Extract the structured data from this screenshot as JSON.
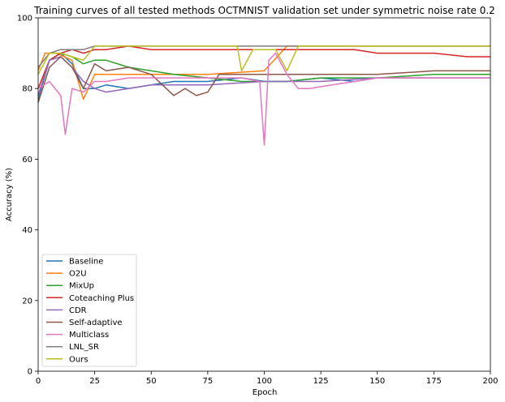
{
  "chart_data": {
    "type": "line",
    "title": "Training curves of all tested methods OCTMNIST validation set under symmetric noise rate 0.2",
    "xlabel": "Epoch",
    "ylabel": "Accuracy (%)",
    "xlim": [
      0,
      200
    ],
    "ylim": [
      0,
      100
    ],
    "xticks": [
      0,
      25,
      50,
      75,
      100,
      125,
      150,
      175,
      200
    ],
    "yticks": [
      0,
      20,
      40,
      60,
      80,
      100
    ],
    "grid": false,
    "legend_position": "lower-left",
    "series": [
      {
        "name": "Baseline",
        "color": "#1f77b4",
        "x": [
          0,
          5,
          10,
          15,
          20,
          25,
          30,
          40,
          50,
          60,
          75,
          90,
          100,
          110,
          125,
          140,
          150,
          160,
          175,
          190,
          200
        ],
        "y": [
          77,
          88,
          90,
          87,
          80,
          80,
          81,
          80,
          81,
          82,
          82,
          83,
          82,
          82,
          83,
          82,
          83,
          83,
          83,
          83,
          83
        ]
      },
      {
        "name": "O2U",
        "color": "#ff7f0e",
        "x": [
          0,
          3,
          8,
          15,
          20,
          25,
          30,
          50,
          75,
          100,
          110,
          125,
          150,
          175,
          200
        ],
        "y": [
          85,
          90,
          90,
          88,
          77,
          84,
          84,
          84,
          84,
          85,
          92,
          92,
          92,
          92,
          92
        ]
      },
      {
        "name": "MixUp",
        "color": "#2ca02c",
        "x": [
          0,
          5,
          10,
          15,
          20,
          25,
          30,
          40,
          50,
          60,
          75,
          90,
          100,
          110,
          125,
          150,
          175,
          200
        ],
        "y": [
          78,
          88,
          90,
          89,
          87,
          88,
          88,
          86,
          85,
          84,
          83,
          82,
          82,
          82,
          83,
          83,
          84,
          84
        ]
      },
      {
        "name": "Coteaching Plus",
        "color": "#d62728",
        "x": [
          0,
          5,
          10,
          15,
          20,
          25,
          30,
          40,
          50,
          60,
          75,
          90,
          100,
          110,
          125,
          140,
          150,
          160,
          175,
          190,
          200
        ],
        "y": [
          80,
          88,
          90,
          91,
          90,
          91,
          91,
          92,
          91,
          91,
          91,
          91,
          91,
          91,
          91,
          91,
          90,
          90,
          90,
          89,
          89
        ]
      },
      {
        "name": "CDR",
        "color": "#9467bd",
        "x": [
          0,
          5,
          10,
          15,
          20,
          25,
          30,
          40,
          50,
          75,
          100,
          125,
          150,
          175,
          200
        ],
        "y": [
          78,
          88,
          89,
          86,
          82,
          80,
          79,
          80,
          81,
          81,
          82,
          82,
          83,
          83,
          83
        ]
      },
      {
        "name": "Self-adaptive",
        "color": "#8c564b",
        "x": [
          0,
          5,
          10,
          15,
          20,
          25,
          30,
          40,
          50,
          60,
          65,
          70,
          75,
          80,
          90,
          100,
          125,
          150,
          175,
          200
        ],
        "y": [
          76,
          86,
          89,
          86,
          80,
          87,
          85,
          86,
          84,
          78,
          80,
          78,
          79,
          84,
          84,
          84,
          84,
          84,
          85,
          85
        ]
      },
      {
        "name": "Multiclass",
        "color": "#e377c2",
        "x": [
          0,
          5,
          10,
          12,
          15,
          20,
          25,
          30,
          40,
          50,
          75,
          90,
          98,
          100,
          102,
          105,
          110,
          115,
          120,
          130,
          140,
          150,
          175,
          200
        ],
        "y": [
          80,
          82,
          78,
          67,
          80,
          79,
          82,
          82,
          83,
          83,
          83,
          83,
          82,
          64,
          88,
          90,
          84,
          80,
          80,
          81,
          82,
          83,
          83,
          83
        ]
      },
      {
        "name": "LNL_SR",
        "color": "#7f7f7f",
        "x": [
          0,
          5,
          10,
          15,
          20,
          25,
          50,
          75,
          100,
          125,
          150,
          175,
          200
        ],
        "y": [
          86,
          90,
          91,
          91,
          91,
          92,
          92,
          92,
          92,
          92,
          92,
          92,
          92
        ]
      },
      {
        "name": "Ours",
        "color": "#bcbd22",
        "x": [
          0,
          5,
          10,
          15,
          20,
          25,
          30,
          50,
          75,
          88,
          90,
          95,
          100,
          105,
          110,
          115,
          125,
          140,
          150,
          175,
          200
        ],
        "y": [
          84,
          90,
          90,
          89,
          88,
          92,
          92,
          92,
          92,
          92,
          85,
          91,
          91,
          91,
          85,
          92,
          92,
          92,
          92,
          92,
          92
        ]
      }
    ]
  }
}
